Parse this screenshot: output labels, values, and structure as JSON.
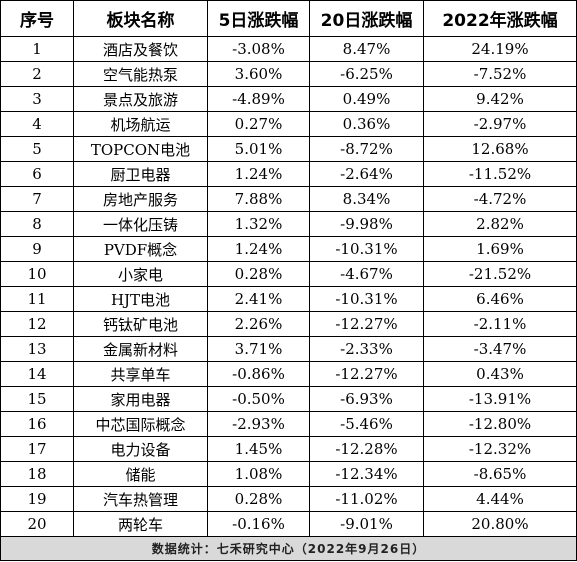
{
  "table": {
    "headers": [
      "序号",
      "板块名称",
      "5日涨跌幅",
      "20日涨跌幅",
      "2022年涨跌幅"
    ],
    "rows": [
      [
        "1",
        "酒店及餐饮",
        "-3.08%",
        "8.47%",
        "24.19%"
      ],
      [
        "2",
        "空气能热泵",
        "3.60%",
        "-6.25%",
        "-7.52%"
      ],
      [
        "3",
        "景点及旅游",
        "-4.89%",
        "0.49%",
        "9.42%"
      ],
      [
        "4",
        "机场航运",
        "0.27%",
        "0.36%",
        "-2.97%"
      ],
      [
        "5",
        "TOPCON电池",
        "5.01%",
        "-8.72%",
        "12.68%"
      ],
      [
        "6",
        "厨卫电器",
        "1.24%",
        "-2.64%",
        "-11.52%"
      ],
      [
        "7",
        "房地产服务",
        "7.88%",
        "8.34%",
        "-4.72%"
      ],
      [
        "8",
        "一体化压铸",
        "1.32%",
        "-9.98%",
        "2.82%"
      ],
      [
        "9",
        "PVDF概念",
        "1.24%",
        "-10.31%",
        "1.69%"
      ],
      [
        "10",
        "小家电",
        "0.28%",
        "-4.67%",
        "-21.52%"
      ],
      [
        "11",
        "HJT电池",
        "2.41%",
        "-10.31%",
        "6.46%"
      ],
      [
        "12",
        "钙钛矿电池",
        "2.26%",
        "-12.27%",
        "-2.11%"
      ],
      [
        "13",
        "金属新材料",
        "3.71%",
        "-2.33%",
        "-3.47%"
      ],
      [
        "14",
        "共享单车",
        "-0.86%",
        "-12.27%",
        "0.43%"
      ],
      [
        "15",
        "家用电器",
        "-0.50%",
        "-6.93%",
        "-13.91%"
      ],
      [
        "16",
        "中芯国际概念",
        "-2.93%",
        "-5.46%",
        "-12.80%"
      ],
      [
        "17",
        "电力设备",
        "1.45%",
        "-12.28%",
        "-12.32%"
      ],
      [
        "18",
        "储能",
        "1.08%",
        "-12.34%",
        "-8.65%"
      ],
      [
        "19",
        "汽车热管理",
        "0.28%",
        "-11.02%",
        "4.44%"
      ],
      [
        "20",
        "两轮车",
        "-0.16%",
        "-9.01%",
        "20.80%"
      ]
    ],
    "footer": "数据统计：七禾研究中心（2022年9月26日）"
  },
  "colors": {
    "border": "#000000",
    "footer_background": "#d9d9d9",
    "text": "#000000"
  }
}
